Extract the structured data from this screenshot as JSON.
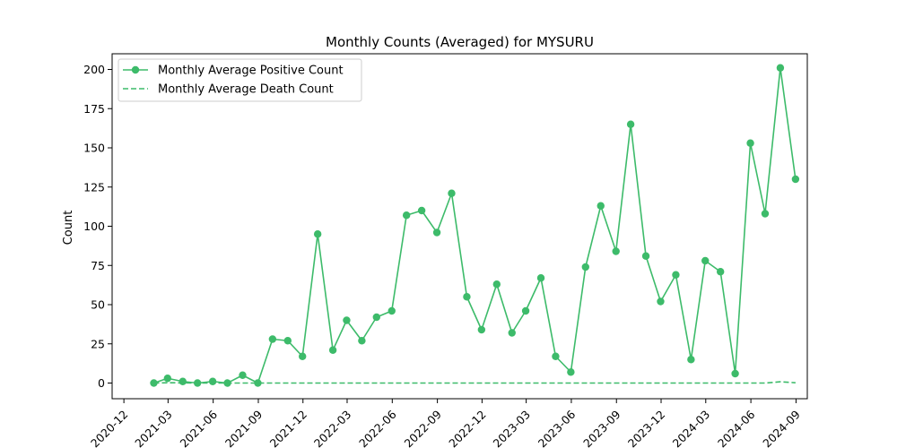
{
  "chart_data": {
    "type": "line",
    "title": "Monthly Counts (Averaged) for MYSURU",
    "xlabel": "",
    "ylabel": "Count",
    "xlim": [
      "2020-11-07",
      "2024-09-24"
    ],
    "ylim": [
      -10,
      210
    ],
    "x_ticks": [
      "2020-12",
      "2021-03",
      "2021-06",
      "2021-09",
      "2021-12",
      "2022-03",
      "2022-06",
      "2022-09",
      "2022-12",
      "2023-03",
      "2023-06",
      "2023-09",
      "2023-12",
      "2024-03",
      "2024-06",
      "2024-09"
    ],
    "y_ticks": [
      0,
      25,
      50,
      75,
      100,
      125,
      150,
      175,
      200
    ],
    "grid": false,
    "legend_position": "upper-left",
    "x": [
      "2021-01-31",
      "2021-02-28",
      "2021-03-31",
      "2021-04-30",
      "2021-05-31",
      "2021-06-30",
      "2021-07-31",
      "2021-08-31",
      "2021-09-30",
      "2021-10-31",
      "2021-11-30",
      "2021-12-31",
      "2022-01-31",
      "2022-02-28",
      "2022-03-31",
      "2022-04-30",
      "2022-05-31",
      "2022-06-30",
      "2022-07-31",
      "2022-08-31",
      "2022-09-30",
      "2022-10-31",
      "2022-11-30",
      "2022-12-31",
      "2023-01-31",
      "2023-02-28",
      "2023-03-31",
      "2023-04-30",
      "2023-05-31",
      "2023-06-30",
      "2023-07-31",
      "2023-08-31",
      "2023-09-30",
      "2023-10-31",
      "2023-11-30",
      "2023-12-31",
      "2024-01-31",
      "2024-02-29",
      "2024-03-31",
      "2024-04-30",
      "2024-05-31",
      "2024-06-30",
      "2024-07-31",
      "2024-08-31"
    ],
    "series": [
      {
        "name": "Monthly Average Positive Count",
        "style": "solid",
        "marker": "circle",
        "color": "#3dbb6a",
        "values": [
          0,
          3,
          1,
          0,
          1,
          0,
          5,
          0,
          28,
          27,
          17,
          95,
          21,
          40,
          27,
          42,
          46,
          107,
          110,
          96,
          121,
          55,
          34,
          63,
          32,
          46,
          67,
          17,
          7,
          74,
          113,
          84,
          165,
          81,
          52,
          69,
          15,
          78,
          71,
          6,
          153,
          108,
          201,
          130
        ]
      },
      {
        "name": "Monthly Average Death Count",
        "style": "dashed",
        "marker": "none",
        "color": "#3dbb6a",
        "values": [
          0,
          0.2,
          0.1,
          0,
          0,
          0,
          0,
          0,
          0,
          0,
          0,
          0,
          0,
          0,
          0,
          0,
          0,
          0,
          0,
          0,
          0,
          0,
          0,
          0,
          0,
          0,
          0,
          0,
          0,
          0,
          0,
          0,
          0,
          0,
          0,
          0,
          0,
          0,
          0,
          0,
          0,
          0,
          0.8,
          0.2
        ]
      }
    ]
  }
}
